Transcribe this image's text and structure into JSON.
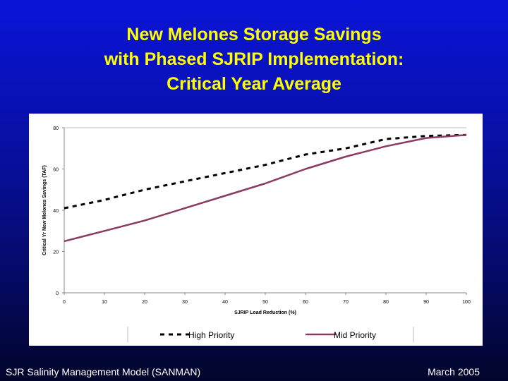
{
  "slide": {
    "title_lines": [
      "New Melones Storage Savings",
      "with Phased SJRIP Implementation:",
      "Critical Year Average"
    ],
    "footer_left": "SJR Salinity Management Model (SANMAN)",
    "footer_right": "March 2005",
    "colors": {
      "title": "#ffff00",
      "high_priority": "#000000",
      "mid_priority": "#8b3a62"
    }
  },
  "chart_data": {
    "type": "line",
    "title": "",
    "xlabel": "SJRIP Load Reduction (%)",
    "ylabel": "Critical Yr New Melones Savings (TAF)",
    "xlim": [
      0,
      100
    ],
    "ylim": [
      0,
      80
    ],
    "xticks": [
      "0",
      "10",
      "20",
      "30",
      "40",
      "50",
      "60",
      "70",
      "80",
      "90",
      "100"
    ],
    "yticks": [
      "0",
      "20",
      "40",
      "60",
      "80"
    ],
    "grid": false,
    "legend_position": "bottom",
    "x": [
      0,
      10,
      20,
      30,
      40,
      50,
      60,
      70,
      80,
      90,
      100
    ],
    "series": [
      {
        "name": "High Priority",
        "style": "dashed",
        "color": "#000000",
        "values": [
          41,
          45,
          50,
          54,
          58,
          62,
          67,
          70,
          74.5,
          76,
          76.5
        ]
      },
      {
        "name": "Mid Priority",
        "style": "solid",
        "color": "#8b3a62",
        "values": [
          25,
          30,
          35,
          41,
          47,
          53,
          60,
          66,
          71,
          75,
          76.5
        ]
      }
    ]
  }
}
